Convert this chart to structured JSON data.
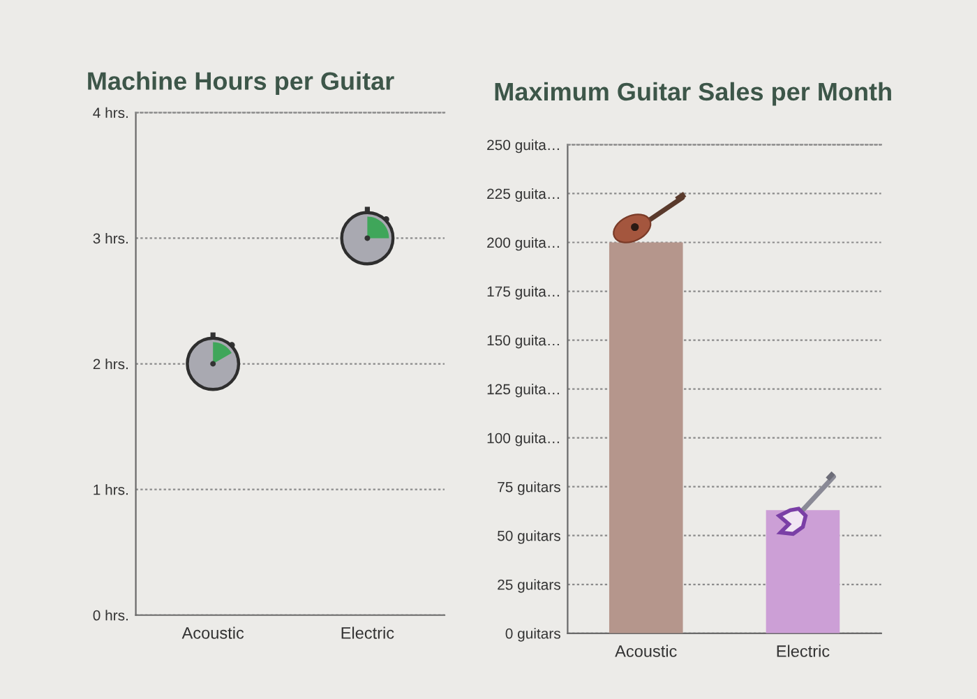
{
  "chart_data": [
    {
      "type": "scatter",
      "title": "Machine Hours per Guitar",
      "categories": [
        "Acoustic",
        "Electric"
      ],
      "series": [
        {
          "color": "#a9a9b1",
          "values": [
            2,
            3
          ]
        }
      ],
      "marker": "circle",
      "ylim": [
        0,
        4
      ],
      "yticks": [
        {
          "value": 0,
          "label": "0 hrs."
        },
        {
          "value": 1,
          "label": "1 hrs."
        },
        {
          "value": 2,
          "label": "2 hrs."
        },
        {
          "value": 3,
          "label": "3 hrs."
        },
        {
          "value": 4,
          "label": "4 hrs."
        }
      ],
      "grid": "y"
    },
    {
      "type": "bar",
      "title": "Maximum Guitar Sales per Month",
      "categories": [
        "Acoustic",
        "Electric"
      ],
      "values": [
        200,
        63
      ],
      "colors": [
        "#b5968c",
        "#cc9fd6"
      ],
      "ylim": [
        0,
        250
      ],
      "yticks": [
        {
          "value": 0,
          "label": "0 guitars"
        },
        {
          "value": 25,
          "label": "25 guitars"
        },
        {
          "value": 50,
          "label": "50 guitars"
        },
        {
          "value": 75,
          "label": "75 guitars"
        },
        {
          "value": 100,
          "label": "100 guita…"
        },
        {
          "value": 125,
          "label": "125 guita…"
        },
        {
          "value": 150,
          "label": "150 guita…"
        },
        {
          "value": 175,
          "label": "175 guita…"
        },
        {
          "value": 200,
          "label": "200 guita…"
        },
        {
          "value": 225,
          "label": "225 guita…"
        },
        {
          "value": 250,
          "label": "250 guita…"
        }
      ],
      "grid": "y"
    }
  ]
}
